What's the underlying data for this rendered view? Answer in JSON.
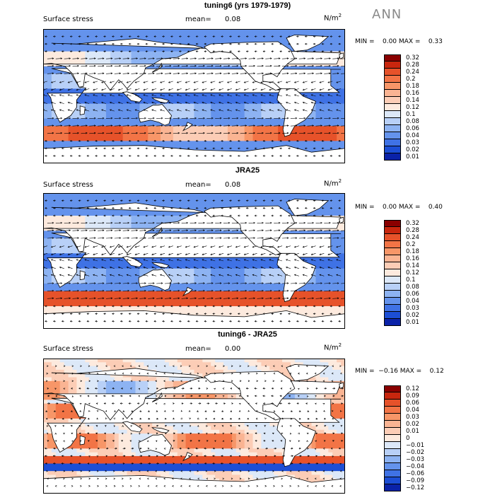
{
  "season": "ANN",
  "chart_data": [
    {
      "type": "heatmap",
      "title": "tuning6 (yrs 1979-1979)",
      "field_label": "Surface stress",
      "mean_label": "mean=",
      "mean_value": "0.08",
      "units": "N/m",
      "units_sup": "2",
      "min_max_text": "MIN =    0.00 MAX =    0.33",
      "min": 0.0,
      "max": 0.33,
      "colorbar_levels": [
        "0.32",
        "0.28",
        "0.24",
        "0.2",
        "0.18",
        "0.16",
        "0.14",
        "0.12",
        "0.1",
        "0.08",
        "0.06",
        "0.04",
        "0.03",
        "0.02",
        "0.01"
      ],
      "colorbar_colors": [
        "#8a0000",
        "#c8260e",
        "#e6522a",
        "#f27446",
        "#f79668",
        "#fab493",
        "#fccdb6",
        "#fdeade",
        "#dce8f8",
        "#b8d0f7",
        "#8db3f2",
        "#6493ec",
        "#3f72e5",
        "#1c4ed5",
        "#0a22a8"
      ],
      "pattern": "model"
    },
    {
      "type": "heatmap",
      "title": "JRA25",
      "field_label": "Surface stress",
      "mean_label": "mean=",
      "mean_value": "0.08",
      "units": "N/m",
      "units_sup": "2",
      "min_max_text": "MIN =    0.00 MAX =    0.40",
      "min": 0.0,
      "max": 0.4,
      "colorbar_levels": [
        "0.32",
        "0.28",
        "0.24",
        "0.2",
        "0.18",
        "0.16",
        "0.14",
        "0.12",
        "0.1",
        "0.08",
        "0.06",
        "0.04",
        "0.03",
        "0.02",
        "0.01"
      ],
      "colorbar_colors": [
        "#8a0000",
        "#c8260e",
        "#e6522a",
        "#f27446",
        "#f79668",
        "#fab493",
        "#fccdb6",
        "#fdeade",
        "#dce8f8",
        "#b8d0f7",
        "#8db3f2",
        "#6493ec",
        "#3f72e5",
        "#1c4ed5",
        "#0a22a8"
      ],
      "pattern": "obs"
    },
    {
      "type": "heatmap",
      "title": "tuning6 - JRA25",
      "field_label": "Surface stress",
      "mean_label": "mean=",
      "mean_value": "0.00",
      "units": "N/m",
      "units_sup": "2",
      "min_max_text": "MIN =  −0.16 MAX =    0.12",
      "min": -0.16,
      "max": 0.12,
      "colorbar_levels": [
        "0.12",
        "0.09",
        "0.06",
        "0.04",
        "0.03",
        "0.02",
        "0.01",
        "0",
        "−0.01",
        "−0.02",
        "−0.03",
        "−0.04",
        "−0.06",
        "−0.09",
        "−0.12"
      ],
      "colorbar_colors": [
        "#8a0000",
        "#c8260e",
        "#e6522a",
        "#f27446",
        "#f79668",
        "#fab493",
        "#fccdb6",
        "#fdeade",
        "#dce8f8",
        "#b8d0f7",
        "#8db3f2",
        "#6493ec",
        "#3f72e5",
        "#1c4ed5",
        "#0a22a8"
      ],
      "pattern": "diff"
    }
  ]
}
